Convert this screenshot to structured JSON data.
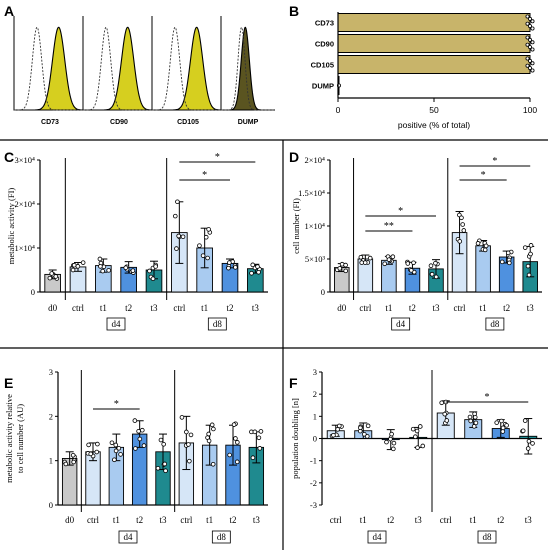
{
  "panels": {
    "A": "A",
    "B": "B",
    "C": "C",
    "D": "D",
    "E": "E",
    "F": "F"
  },
  "colors": {
    "d0": "#c9c9c9",
    "ctrl": "#d6e6f7",
    "t1": "#a9cbf0",
    "t2": "#4f91df",
    "t3": "#1f8a8f",
    "marker": "#d6cf1f",
    "barB": "#c8b46a"
  },
  "chart_data": [
    {
      "id": "A",
      "type": "histogram",
      "title": "",
      "plots": [
        {
          "label": "CD73"
        },
        {
          "label": "CD90"
        },
        {
          "label": "CD105"
        },
        {
          "label": "DUMP"
        }
      ]
    },
    {
      "id": "B",
      "type": "bar",
      "orientation": "horizontal",
      "categories": [
        "CD73",
        "CD90",
        "CD105",
        "DUMP"
      ],
      "values": [
        100,
        100,
        100,
        0.5
      ],
      "xlabel": "positive (% of total)",
      "xlim": [
        0,
        100
      ],
      "xticks": [
        "0",
        "50",
        "100"
      ]
    },
    {
      "id": "C",
      "type": "bar",
      "categories": [
        "d0",
        "ctrl",
        "t1",
        "t2",
        "t3",
        "ctrl",
        "t1",
        "t2",
        "t3"
      ],
      "groups": [
        "d4",
        "d8"
      ],
      "values": [
        4000,
        5700,
        6000,
        5600,
        5000,
        13500,
        10000,
        6500,
        5300
      ],
      "errors": [
        1000,
        1000,
        1500,
        1300,
        2000,
        7000,
        4500,
        1000,
        1000
      ],
      "ylabel": "metabolic activity (FI)",
      "ylim": [
        0,
        30000
      ],
      "yticks": [
        "0",
        "1×10⁴",
        "2×10⁴",
        "3×10⁴"
      ],
      "significance": [
        "*",
        "*"
      ]
    },
    {
      "id": "D",
      "type": "bar",
      "categories": [
        "d0",
        "ctrl",
        "t1",
        "t2",
        "t3",
        "ctrl",
        "t1",
        "t2",
        "t3"
      ],
      "groups": [
        "d4",
        "d8"
      ],
      "values": [
        3700,
        5000,
        4800,
        3600,
        3500,
        9000,
        7000,
        5300,
        4600
      ],
      "errors": [
        600,
        600,
        600,
        900,
        1400,
        3200,
        800,
        900,
        2300
      ],
      "ylabel": "cell number (FI)",
      "ylim": [
        0,
        20000
      ],
      "yticks": [
        "0",
        "5×10³",
        "1×10⁴",
        "1.5×10⁴",
        "2×10⁴"
      ],
      "significance": [
        "**",
        "*",
        "*",
        "*"
      ]
    },
    {
      "id": "E",
      "type": "bar",
      "categories": [
        "d0",
        "ctrl",
        "t1",
        "t2",
        "t3",
        "ctrl",
        "t1",
        "t2",
        "t3"
      ],
      "groups": [
        "d4",
        "d8"
      ],
      "values": [
        1.05,
        1.2,
        1.3,
        1.6,
        1.2,
        1.4,
        1.35,
        1.35,
        1.3
      ],
      "errors": [
        0.15,
        0.2,
        0.3,
        0.3,
        0.4,
        0.6,
        0.45,
        0.45,
        0.35
      ],
      "ylabel": "metabolic activity relative to cell number (AU)",
      "ylim": [
        0,
        3
      ],
      "yticks": [
        "0",
        "1",
        "2",
        "3"
      ],
      "significance": [
        "*"
      ]
    },
    {
      "id": "F",
      "type": "bar",
      "categories": [
        "ctrl",
        "t1",
        "t2",
        "t3",
        "ctrl",
        "t1",
        "t2",
        "t3"
      ],
      "groups": [
        "d4",
        "d8"
      ],
      "values": [
        0.35,
        0.35,
        -0.05,
        0.05,
        1.15,
        0.85,
        0.45,
        0.1
      ],
      "errors": [
        0.25,
        0.35,
        0.45,
        0.45,
        0.55,
        0.35,
        0.4,
        0.8
      ],
      "ylabel": "population doubling [n]",
      "ylim": [
        -3,
        3
      ],
      "yticks": [
        "-3",
        "-2",
        "-1",
        "0",
        "1",
        "2",
        "3"
      ],
      "significance": [
        "*"
      ]
    }
  ]
}
